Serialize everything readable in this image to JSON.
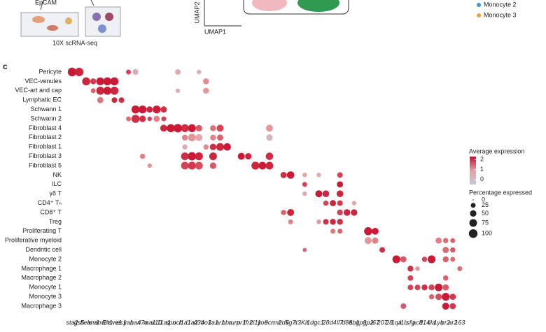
{
  "top_panel": {
    "epcam": "EpCAM",
    "method": "10X scRNA-seq",
    "umap_y": "UMAP2",
    "umap_x": "UMAP1",
    "legend": [
      {
        "name": "Monocyte 2",
        "color": "#3b9ad9"
      },
      {
        "name": "Monocyte 3",
        "color": "#f0a030"
      }
    ]
  },
  "chart_data": {
    "type": "dotplot",
    "panel": "c",
    "rows": [
      "Pericyte",
      "VEC-venules",
      "VEC-art and cap",
      "Lymphatic EC",
      "Schwann 1",
      "Schwann 2",
      "Fibroblast 4",
      "Fibroblast 2",
      "Fibroblast 1",
      "Fibroblast 3",
      "Fibroblast 5",
      "NK",
      "ILC",
      "γδ T",
      "CD4⁺ Tₕ",
      "CD8⁺ T",
      "Treg",
      "Proliferating T",
      "Proliferative myeloid",
      "Dendritic cell",
      "Monocyte 2",
      "Macrophage 1",
      "Macrophage 2",
      "Monocyte 1",
      "Monocyte 3",
      "Macrophage 3"
    ],
    "columns": [
      "sta2",
      "gs5",
      "bele",
      "am1",
      "am1",
      "Flt1",
      "vwe1",
      "es1",
      "yab",
      "ha4",
      "n7a",
      "ma1",
      "x10",
      "11a1",
      "spn",
      "och",
      "l1a1",
      "l1a2",
      "d34",
      "bo1",
      "3a1",
      "ar1",
      "hba",
      "rum",
      "pr1",
      "Ifr2",
      "cl11",
      "yoc",
      "9cn",
      "rmc",
      "2d5",
      "kg7",
      "lt3",
      "Kit",
      "1dc",
      "gc1",
      "28",
      "d4",
      "ll7",
      "d8a",
      "8b1",
      "gp3",
      "gp2",
      "i67",
      "207",
      "28",
      "1qa",
      "l1b",
      "sfg",
      "ac8",
      "d14",
      "lila",
      "1yb",
      "cr2",
      "ar2",
      "163"
    ],
    "dots": [
      [
        0,
        0,
        100,
        2.2
      ],
      [
        0,
        1,
        95,
        2.1
      ],
      [
        0,
        8,
        25,
        1.8
      ],
      [
        0,
        9,
        40,
        0.3
      ],
      [
        0,
        15,
        35,
        0.5
      ],
      [
        0,
        18,
        20,
        0.4
      ],
      [
        1,
        2,
        85,
        2.1
      ],
      [
        1,
        3,
        40,
        1.9
      ],
      [
        1,
        4,
        80,
        2.2
      ],
      [
        1,
        5,
        85,
        2.2
      ],
      [
        1,
        6,
        85,
        2.2
      ],
      [
        1,
        19,
        40,
        1.1
      ],
      [
        2,
        3,
        25,
        1.5
      ],
      [
        2,
        4,
        85,
        2.1
      ],
      [
        2,
        5,
        85,
        2.2
      ],
      [
        2,
        6,
        85,
        2.1
      ],
      [
        2,
        19,
        40,
        1.0
      ],
      [
        2,
        15,
        20,
        0.3
      ],
      [
        3,
        4,
        45,
        1.3
      ],
      [
        3,
        6,
        35,
        2.1
      ],
      [
        3,
        7,
        35,
        2.0
      ],
      [
        4,
        9,
        85,
        2.2
      ],
      [
        4,
        10,
        80,
        2.2
      ],
      [
        4,
        11,
        45,
        2.1
      ],
      [
        4,
        12,
        80,
        2.2
      ],
      [
        4,
        13,
        45,
        2.0
      ],
      [
        5,
        9,
        85,
        2.0
      ],
      [
        5,
        10,
        50,
        2.0
      ],
      [
        5,
        12,
        45,
        1.2
      ],
      [
        5,
        13,
        25,
        1.8
      ],
      [
        5,
        11,
        20,
        1.8
      ],
      [
        5,
        8,
        25,
        1.4
      ],
      [
        6,
        13,
        60,
        2.1
      ],
      [
        6,
        14,
        85,
        2.2
      ],
      [
        6,
        15,
        95,
        2.2
      ],
      [
        6,
        16,
        80,
        2.0
      ],
      [
        6,
        17,
        80,
        2.2
      ],
      [
        6,
        18,
        50,
        1.6
      ],
      [
        6,
        20,
        40,
        1.4
      ],
      [
        6,
        21,
        60,
        1.8
      ],
      [
        6,
        28,
        60,
        1.0
      ],
      [
        7,
        16,
        40,
        1.2
      ],
      [
        7,
        17,
        75,
        1.0
      ],
      [
        7,
        18,
        60,
        0.6
      ],
      [
        7,
        20,
        40,
        1.2
      ],
      [
        7,
        21,
        45,
        1.5
      ],
      [
        7,
        28,
        50,
        0.2
      ],
      [
        8,
        19,
        30,
        1.1
      ],
      [
        8,
        20,
        50,
        2.0
      ],
      [
        8,
        21,
        75,
        2.1
      ],
      [
        8,
        22,
        70,
        2.2
      ],
      [
        8,
        16,
        30,
        0.4
      ],
      [
        9,
        16,
        75,
        2.0
      ],
      [
        9,
        17,
        90,
        2.2
      ],
      [
        9,
        18,
        80,
        2.1
      ],
      [
        9,
        20,
        75,
        2.1
      ],
      [
        9,
        24,
        60,
        2.2
      ],
      [
        9,
        25,
        50,
        2.1
      ],
      [
        9,
        28,
        70,
        2.0
      ],
      [
        9,
        10,
        30,
        1.2
      ],
      [
        10,
        16,
        75,
        1.8
      ],
      [
        10,
        17,
        80,
        1.9
      ],
      [
        10,
        18,
        75,
        1.7
      ],
      [
        10,
        20,
        50,
        1.6
      ],
      [
        10,
        26,
        80,
        2.1
      ],
      [
        10,
        27,
        75,
        2.2
      ],
      [
        10,
        28,
        75,
        2.1
      ],
      [
        10,
        11,
        20,
        1.0
      ],
      [
        11,
        30,
        45,
        2.0
      ],
      [
        11,
        31,
        70,
        2.2
      ],
      [
        11,
        33,
        20,
        0.8
      ],
      [
        11,
        38,
        35,
        1.8
      ],
      [
        11,
        35,
        20,
        0.5
      ],
      [
        12,
        33,
        25,
        1.8
      ],
      [
        12,
        38,
        45,
        2.2
      ],
      [
        13,
        35,
        60,
        2.2
      ],
      [
        13,
        36,
        55,
        2.1
      ],
      [
        13,
        38,
        55,
        2.1
      ],
      [
        13,
        33,
        20,
        0.5
      ],
      [
        14,
        36,
        30,
        1.8
      ],
      [
        14,
        37,
        45,
        2.1
      ],
      [
        14,
        38,
        35,
        1.9
      ],
      [
        14,
        40,
        20,
        0.6
      ],
      [
        15,
        31,
        60,
        2.1
      ],
      [
        15,
        30,
        30,
        1.5
      ],
      [
        15,
        39,
        55,
        2.1
      ],
      [
        15,
        40,
        50,
        2.1
      ],
      [
        15,
        38,
        40,
        1.8
      ],
      [
        16,
        36,
        35,
        2.0
      ],
      [
        16,
        37,
        40,
        2.1
      ],
      [
        16,
        38,
        40,
        2.0
      ],
      [
        16,
        35,
        20,
        1.0
      ],
      [
        16,
        31,
        25,
        1.2
      ],
      [
        17,
        42,
        85,
        2.2
      ],
      [
        17,
        43,
        55,
        2.2
      ],
      [
        17,
        38,
        25,
        1.5
      ],
      [
        17,
        37,
        25,
        1.3
      ],
      [
        18,
        42,
        60,
        1.0
      ],
      [
        18,
        43,
        45,
        1.2
      ],
      [
        18,
        52,
        45,
        1.2
      ],
      [
        18,
        53,
        30,
        1.4
      ],
      [
        18,
        54,
        25,
        1.5
      ],
      [
        19,
        44,
        35,
        2.0
      ],
      [
        19,
        53,
        45,
        1.4
      ],
      [
        19,
        54,
        30,
        1.6
      ],
      [
        19,
        33,
        15,
        1.5
      ],
      [
        20,
        46,
        80,
        2.2
      ],
      [
        20,
        47,
        45,
        1.6
      ],
      [
        20,
        50,
        30,
        1.8
      ],
      [
        20,
        51,
        80,
        2.2
      ],
      [
        20,
        53,
        40,
        1.5
      ],
      [
        20,
        54,
        25,
        1.4
      ],
      [
        21,
        48,
        40,
        2.0
      ],
      [
        21,
        55,
        25,
        1.4
      ],
      [
        21,
        49,
        20,
        1.0
      ],
      [
        22,
        48,
        35,
        1.8
      ],
      [
        22,
        53,
        30,
        1.5
      ],
      [
        23,
        48,
        35,
        1.8
      ],
      [
        23,
        49,
        35,
        1.8
      ],
      [
        23,
        50,
        40,
        2.0
      ],
      [
        23,
        51,
        40,
        1.8
      ],
      [
        23,
        52,
        75,
        2.2
      ],
      [
        23,
        53,
        45,
        1.6
      ],
      [
        24,
        51,
        30,
        1.5
      ],
      [
        24,
        52,
        50,
        1.7
      ],
      [
        24,
        53,
        80,
        2.2
      ],
      [
        24,
        54,
        45,
        1.9
      ],
      [
        25,
        47,
        35,
        1.6
      ],
      [
        25,
        53,
        60,
        2.2
      ],
      [
        25,
        54,
        45,
        1.9
      ]
    ],
    "color_title": "Average expression",
    "color_lim": [
      -0.5,
      2.3
    ],
    "color_ticks": [
      2,
      1,
      0
    ],
    "color_stops": [
      "#c6c6e0",
      "#e6a0a0",
      "#c8102e"
    ],
    "size_title": "Percentage expressed",
    "size_ticks": [
      0,
      25,
      50,
      75,
      100
    ]
  }
}
